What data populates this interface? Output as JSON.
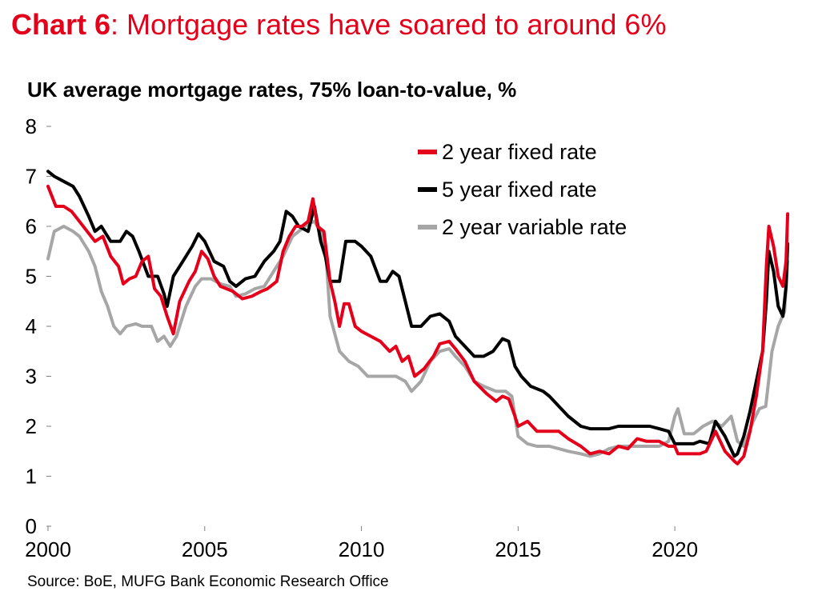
{
  "header": {
    "chart_number": "Chart 6",
    "headline": ": Mortgage rates have soared to around 6%"
  },
  "footer": {
    "source": "Source: BoE, MUFG Bank Economic Research Office"
  },
  "chart_data": {
    "type": "line",
    "title": "UK average mortgage rates, 75% loan-to-value, %",
    "xlabel": "",
    "ylabel": "",
    "xlim": [
      2000,
      2023.7
    ],
    "ylim": [
      0,
      8
    ],
    "x_ticks": [
      2000,
      2005,
      2010,
      2015,
      2020
    ],
    "x_tick_labels": [
      "2000",
      "2005",
      "2010",
      "2015",
      "2020"
    ],
    "y_ticks": [
      0,
      1,
      2,
      3,
      4,
      5,
      6,
      7,
      8
    ],
    "y_tick_labels": [
      "0",
      "1",
      "2",
      "3",
      "4",
      "5",
      "6",
      "7",
      "8"
    ],
    "grid": false,
    "legend_position": "top-right",
    "series": [
      {
        "name": "2 year fixed rate",
        "color": "#e4001b",
        "points": [
          [
            2000.0,
            6.8
          ],
          [
            2000.25,
            6.4
          ],
          [
            2000.5,
            6.4
          ],
          [
            2000.75,
            6.3
          ],
          [
            2001.0,
            6.1
          ],
          [
            2001.25,
            5.9
          ],
          [
            2001.5,
            5.7
          ],
          [
            2001.75,
            5.8
          ],
          [
            2002.0,
            5.4
          ],
          [
            2002.25,
            5.2
          ],
          [
            2002.4,
            4.85
          ],
          [
            2002.6,
            4.95
          ],
          [
            2002.8,
            5.0
          ],
          [
            2003.0,
            5.3
          ],
          [
            2003.2,
            5.4
          ],
          [
            2003.4,
            4.75
          ],
          [
            2003.6,
            4.6
          ],
          [
            2003.8,
            4.2
          ],
          [
            2004.0,
            3.85
          ],
          [
            2004.2,
            4.5
          ],
          [
            2004.5,
            4.9
          ],
          [
            2004.7,
            5.1
          ],
          [
            2004.9,
            5.5
          ],
          [
            2005.1,
            5.35
          ],
          [
            2005.3,
            5.0
          ],
          [
            2005.5,
            4.8
          ],
          [
            2005.7,
            4.75
          ],
          [
            2005.9,
            4.7
          ],
          [
            2006.2,
            4.55
          ],
          [
            2006.5,
            4.6
          ],
          [
            2006.8,
            4.7
          ],
          [
            2007.0,
            4.75
          ],
          [
            2007.3,
            4.9
          ],
          [
            2007.5,
            5.5
          ],
          [
            2007.7,
            5.8
          ],
          [
            2007.9,
            6.0
          ],
          [
            2008.1,
            6.0
          ],
          [
            2008.3,
            6.1
          ],
          [
            2008.45,
            6.55
          ],
          [
            2008.6,
            6.0
          ],
          [
            2008.8,
            5.9
          ],
          [
            2009.0,
            4.9
          ],
          [
            2009.15,
            4.5
          ],
          [
            2009.3,
            4.0
          ],
          [
            2009.45,
            4.45
          ],
          [
            2009.6,
            4.45
          ],
          [
            2009.8,
            4.0
          ],
          [
            2010.0,
            3.9
          ],
          [
            2010.3,
            3.8
          ],
          [
            2010.6,
            3.7
          ],
          [
            2010.9,
            3.5
          ],
          [
            2011.1,
            3.6
          ],
          [
            2011.3,
            3.3
          ],
          [
            2011.5,
            3.4
          ],
          [
            2011.7,
            3.0
          ],
          [
            2012.0,
            3.15
          ],
          [
            2012.3,
            3.4
          ],
          [
            2012.5,
            3.65
          ],
          [
            2012.8,
            3.7
          ],
          [
            2013.0,
            3.55
          ],
          [
            2013.3,
            3.3
          ],
          [
            2013.6,
            2.9
          ],
          [
            2014.0,
            2.65
          ],
          [
            2014.3,
            2.5
          ],
          [
            2014.5,
            2.6
          ],
          [
            2014.7,
            2.55
          ],
          [
            2014.9,
            2.2
          ],
          [
            2015.0,
            2.0
          ],
          [
            2015.3,
            2.1
          ],
          [
            2015.6,
            1.9
          ],
          [
            2016.0,
            1.9
          ],
          [
            2016.3,
            1.9
          ],
          [
            2016.6,
            1.75
          ],
          [
            2017.0,
            1.6
          ],
          [
            2017.3,
            1.45
          ],
          [
            2017.6,
            1.5
          ],
          [
            2017.9,
            1.45
          ],
          [
            2018.2,
            1.6
          ],
          [
            2018.5,
            1.55
          ],
          [
            2018.8,
            1.75
          ],
          [
            2019.1,
            1.7
          ],
          [
            2019.5,
            1.7
          ],
          [
            2019.8,
            1.6
          ],
          [
            2020.0,
            1.6
          ],
          [
            2020.1,
            1.45
          ],
          [
            2020.5,
            1.45
          ],
          [
            2020.8,
            1.45
          ],
          [
            2021.0,
            1.5
          ],
          [
            2021.3,
            1.9
          ],
          [
            2021.6,
            1.5
          ],
          [
            2021.9,
            1.3
          ],
          [
            2022.0,
            1.25
          ],
          [
            2022.2,
            1.4
          ],
          [
            2022.4,
            1.9
          ],
          [
            2022.6,
            2.6
          ],
          [
            2022.8,
            3.5
          ],
          [
            2022.92,
            5.2
          ],
          [
            2023.0,
            6.0
          ],
          [
            2023.15,
            5.6
          ],
          [
            2023.3,
            5.0
          ],
          [
            2023.45,
            4.8
          ],
          [
            2023.55,
            5.3
          ],
          [
            2023.6,
            6.25
          ]
        ]
      },
      {
        "name": "5 year fixed rate",
        "color": "#000000",
        "points": [
          [
            2000.0,
            7.1
          ],
          [
            2000.2,
            7.0
          ],
          [
            2000.5,
            6.9
          ],
          [
            2000.8,
            6.8
          ],
          [
            2001.0,
            6.6
          ],
          [
            2001.3,
            6.2
          ],
          [
            2001.5,
            5.9
          ],
          [
            2001.7,
            6.0
          ],
          [
            2002.0,
            5.7
          ],
          [
            2002.3,
            5.7
          ],
          [
            2002.5,
            5.9
          ],
          [
            2002.7,
            5.8
          ],
          [
            2002.9,
            5.5
          ],
          [
            2003.2,
            5.0
          ],
          [
            2003.5,
            5.0
          ],
          [
            2003.7,
            4.65
          ],
          [
            2003.8,
            4.4
          ],
          [
            2004.0,
            5.0
          ],
          [
            2004.3,
            5.3
          ],
          [
            2004.6,
            5.6
          ],
          [
            2004.8,
            5.85
          ],
          [
            2005.0,
            5.7
          ],
          [
            2005.3,
            5.3
          ],
          [
            2005.6,
            5.2
          ],
          [
            2005.8,
            4.9
          ],
          [
            2006.0,
            4.8
          ],
          [
            2006.3,
            4.95
          ],
          [
            2006.6,
            5.0
          ],
          [
            2006.9,
            5.3
          ],
          [
            2007.2,
            5.5
          ],
          [
            2007.4,
            5.7
          ],
          [
            2007.6,
            6.3
          ],
          [
            2007.8,
            6.2
          ],
          [
            2008.0,
            6.0
          ],
          [
            2008.3,
            5.9
          ],
          [
            2008.5,
            6.4
          ],
          [
            2008.7,
            5.7
          ],
          [
            2008.85,
            5.4
          ],
          [
            2009.0,
            4.9
          ],
          [
            2009.3,
            4.9
          ],
          [
            2009.5,
            5.7
          ],
          [
            2009.8,
            5.7
          ],
          [
            2010.0,
            5.6
          ],
          [
            2010.3,
            5.4
          ],
          [
            2010.6,
            4.9
          ],
          [
            2010.8,
            4.9
          ],
          [
            2011.0,
            5.1
          ],
          [
            2011.2,
            5.0
          ],
          [
            2011.4,
            4.5
          ],
          [
            2011.6,
            4.0
          ],
          [
            2011.9,
            4.0
          ],
          [
            2012.2,
            4.2
          ],
          [
            2012.5,
            4.25
          ],
          [
            2012.8,
            4.1
          ],
          [
            2013.0,
            3.8
          ],
          [
            2013.3,
            3.6
          ],
          [
            2013.6,
            3.4
          ],
          [
            2013.9,
            3.4
          ],
          [
            2014.2,
            3.5
          ],
          [
            2014.5,
            3.75
          ],
          [
            2014.7,
            3.7
          ],
          [
            2014.9,
            3.2
          ],
          [
            2015.1,
            3.0
          ],
          [
            2015.4,
            2.8
          ],
          [
            2015.8,
            2.7
          ],
          [
            2016.0,
            2.6
          ],
          [
            2016.3,
            2.4
          ],
          [
            2016.6,
            2.2
          ],
          [
            2017.0,
            2.0
          ],
          [
            2017.3,
            1.95
          ],
          [
            2017.6,
            1.95
          ],
          [
            2017.9,
            1.95
          ],
          [
            2018.2,
            2.0
          ],
          [
            2018.5,
            2.0
          ],
          [
            2018.8,
            2.0
          ],
          [
            2019.2,
            2.0
          ],
          [
            2019.5,
            1.95
          ],
          [
            2019.8,
            1.9
          ],
          [
            2020.0,
            1.65
          ],
          [
            2020.3,
            1.65
          ],
          [
            2020.6,
            1.65
          ],
          [
            2020.8,
            1.7
          ],
          [
            2021.1,
            1.65
          ],
          [
            2021.3,
            2.1
          ],
          [
            2021.6,
            1.8
          ],
          [
            2021.9,
            1.4
          ],
          [
            2022.0,
            1.45
          ],
          [
            2022.2,
            1.8
          ],
          [
            2022.4,
            2.3
          ],
          [
            2022.6,
            2.9
          ],
          [
            2022.8,
            3.5
          ],
          [
            2022.92,
            4.5
          ],
          [
            2023.0,
            5.5
          ],
          [
            2023.15,
            5.1
          ],
          [
            2023.3,
            4.4
          ],
          [
            2023.45,
            4.2
          ],
          [
            2023.55,
            4.8
          ],
          [
            2023.6,
            5.65
          ]
        ]
      },
      {
        "name": "2 year variable rate",
        "color": "#a6a6a6",
        "points": [
          [
            2000.0,
            5.35
          ],
          [
            2000.2,
            5.9
          ],
          [
            2000.5,
            6.0
          ],
          [
            2000.8,
            5.9
          ],
          [
            2001.0,
            5.8
          ],
          [
            2001.3,
            5.5
          ],
          [
            2001.5,
            5.2
          ],
          [
            2001.7,
            4.7
          ],
          [
            2001.9,
            4.4
          ],
          [
            2002.1,
            4.0
          ],
          [
            2002.3,
            3.85
          ],
          [
            2002.5,
            4.0
          ],
          [
            2002.8,
            4.05
          ],
          [
            2003.0,
            4.0
          ],
          [
            2003.3,
            4.0
          ],
          [
            2003.5,
            3.7
          ],
          [
            2003.7,
            3.8
          ],
          [
            2003.9,
            3.6
          ],
          [
            2004.1,
            3.8
          ],
          [
            2004.4,
            4.4
          ],
          [
            2004.7,
            4.8
          ],
          [
            2004.9,
            4.95
          ],
          [
            2005.2,
            4.95
          ],
          [
            2005.5,
            4.85
          ],
          [
            2005.8,
            4.8
          ],
          [
            2006.0,
            4.6
          ],
          [
            2006.3,
            4.65
          ],
          [
            2006.6,
            4.75
          ],
          [
            2006.9,
            4.8
          ],
          [
            2007.2,
            5.1
          ],
          [
            2007.5,
            5.4
          ],
          [
            2007.8,
            5.8
          ],
          [
            2008.0,
            5.9
          ],
          [
            2008.3,
            6.05
          ],
          [
            2008.5,
            6.1
          ],
          [
            2008.7,
            5.9
          ],
          [
            2008.85,
            5.6
          ],
          [
            2009.0,
            4.2
          ],
          [
            2009.3,
            3.5
          ],
          [
            2009.6,
            3.3
          ],
          [
            2009.9,
            3.2
          ],
          [
            2010.2,
            3.0
          ],
          [
            2010.5,
            3.0
          ],
          [
            2010.8,
            3.0
          ],
          [
            2011.1,
            3.0
          ],
          [
            2011.4,
            2.9
          ],
          [
            2011.6,
            2.7
          ],
          [
            2011.9,
            2.9
          ],
          [
            2012.2,
            3.3
          ],
          [
            2012.5,
            3.5
          ],
          [
            2012.8,
            3.55
          ],
          [
            2013.0,
            3.4
          ],
          [
            2013.3,
            3.2
          ],
          [
            2013.6,
            2.9
          ],
          [
            2013.9,
            2.8
          ],
          [
            2014.3,
            2.7
          ],
          [
            2014.6,
            2.7
          ],
          [
            2014.8,
            2.6
          ],
          [
            2014.9,
            2.2
          ],
          [
            2015.0,
            1.8
          ],
          [
            2015.3,
            1.65
          ],
          [
            2015.6,
            1.6
          ],
          [
            2016.0,
            1.6
          ],
          [
            2016.3,
            1.55
          ],
          [
            2016.6,
            1.5
          ],
          [
            2017.0,
            1.45
          ],
          [
            2017.3,
            1.4
          ],
          [
            2017.6,
            1.45
          ],
          [
            2017.9,
            1.55
          ],
          [
            2018.2,
            1.6
          ],
          [
            2018.5,
            1.6
          ],
          [
            2018.8,
            1.6
          ],
          [
            2019.2,
            1.6
          ],
          [
            2019.5,
            1.6
          ],
          [
            2019.8,
            1.7
          ],
          [
            2020.0,
            2.2
          ],
          [
            2020.1,
            2.35
          ],
          [
            2020.3,
            1.85
          ],
          [
            2020.6,
            1.85
          ],
          [
            2020.9,
            2.0
          ],
          [
            2021.2,
            2.1
          ],
          [
            2021.5,
            2.0
          ],
          [
            2021.8,
            2.2
          ],
          [
            2022.0,
            1.7
          ],
          [
            2022.2,
            1.6
          ],
          [
            2022.5,
            2.1
          ],
          [
            2022.7,
            2.35
          ],
          [
            2022.9,
            2.4
          ],
          [
            2023.1,
            3.5
          ],
          [
            2023.3,
            4.0
          ],
          [
            2023.5,
            4.3
          ],
          [
            2023.6,
            5.3
          ]
        ]
      }
    ]
  }
}
